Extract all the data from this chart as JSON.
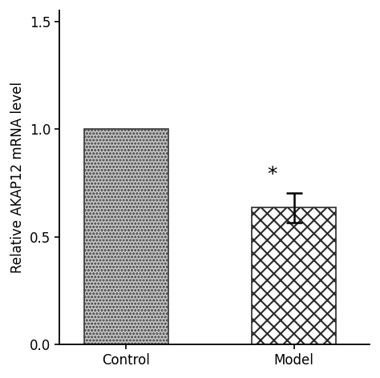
{
  "categories": [
    "Control",
    "Model"
  ],
  "values": [
    1.0,
    0.635
  ],
  "errors": [
    0.0,
    0.07
  ],
  "ylim": [
    0.0,
    1.55
  ],
  "yticks": [
    0.0,
    0.5,
    1.0,
    1.5
  ],
  "ylabel": "Relative AKAP12 mRNA level",
  "bar_width": 0.5,
  "bar_positions": [
    1,
    2
  ],
  "hatch_control": "....",
  "hatch_model": "xx",
  "bar_color_control": "#c8c8c8",
  "bar_color_model": "#ffffff",
  "bar_edge_control": "#3a3a3a",
  "bar_edge_model": "#2a2a2a",
  "error_color": "#000000",
  "asterisk_text": "*",
  "asterisk_fontsize": 18,
  "background_color": "#ffffff",
  "tick_fontsize": 12,
  "label_fontsize": 12,
  "spine_linewidth": 1.3,
  "hatch_linewidth": 1.5
}
